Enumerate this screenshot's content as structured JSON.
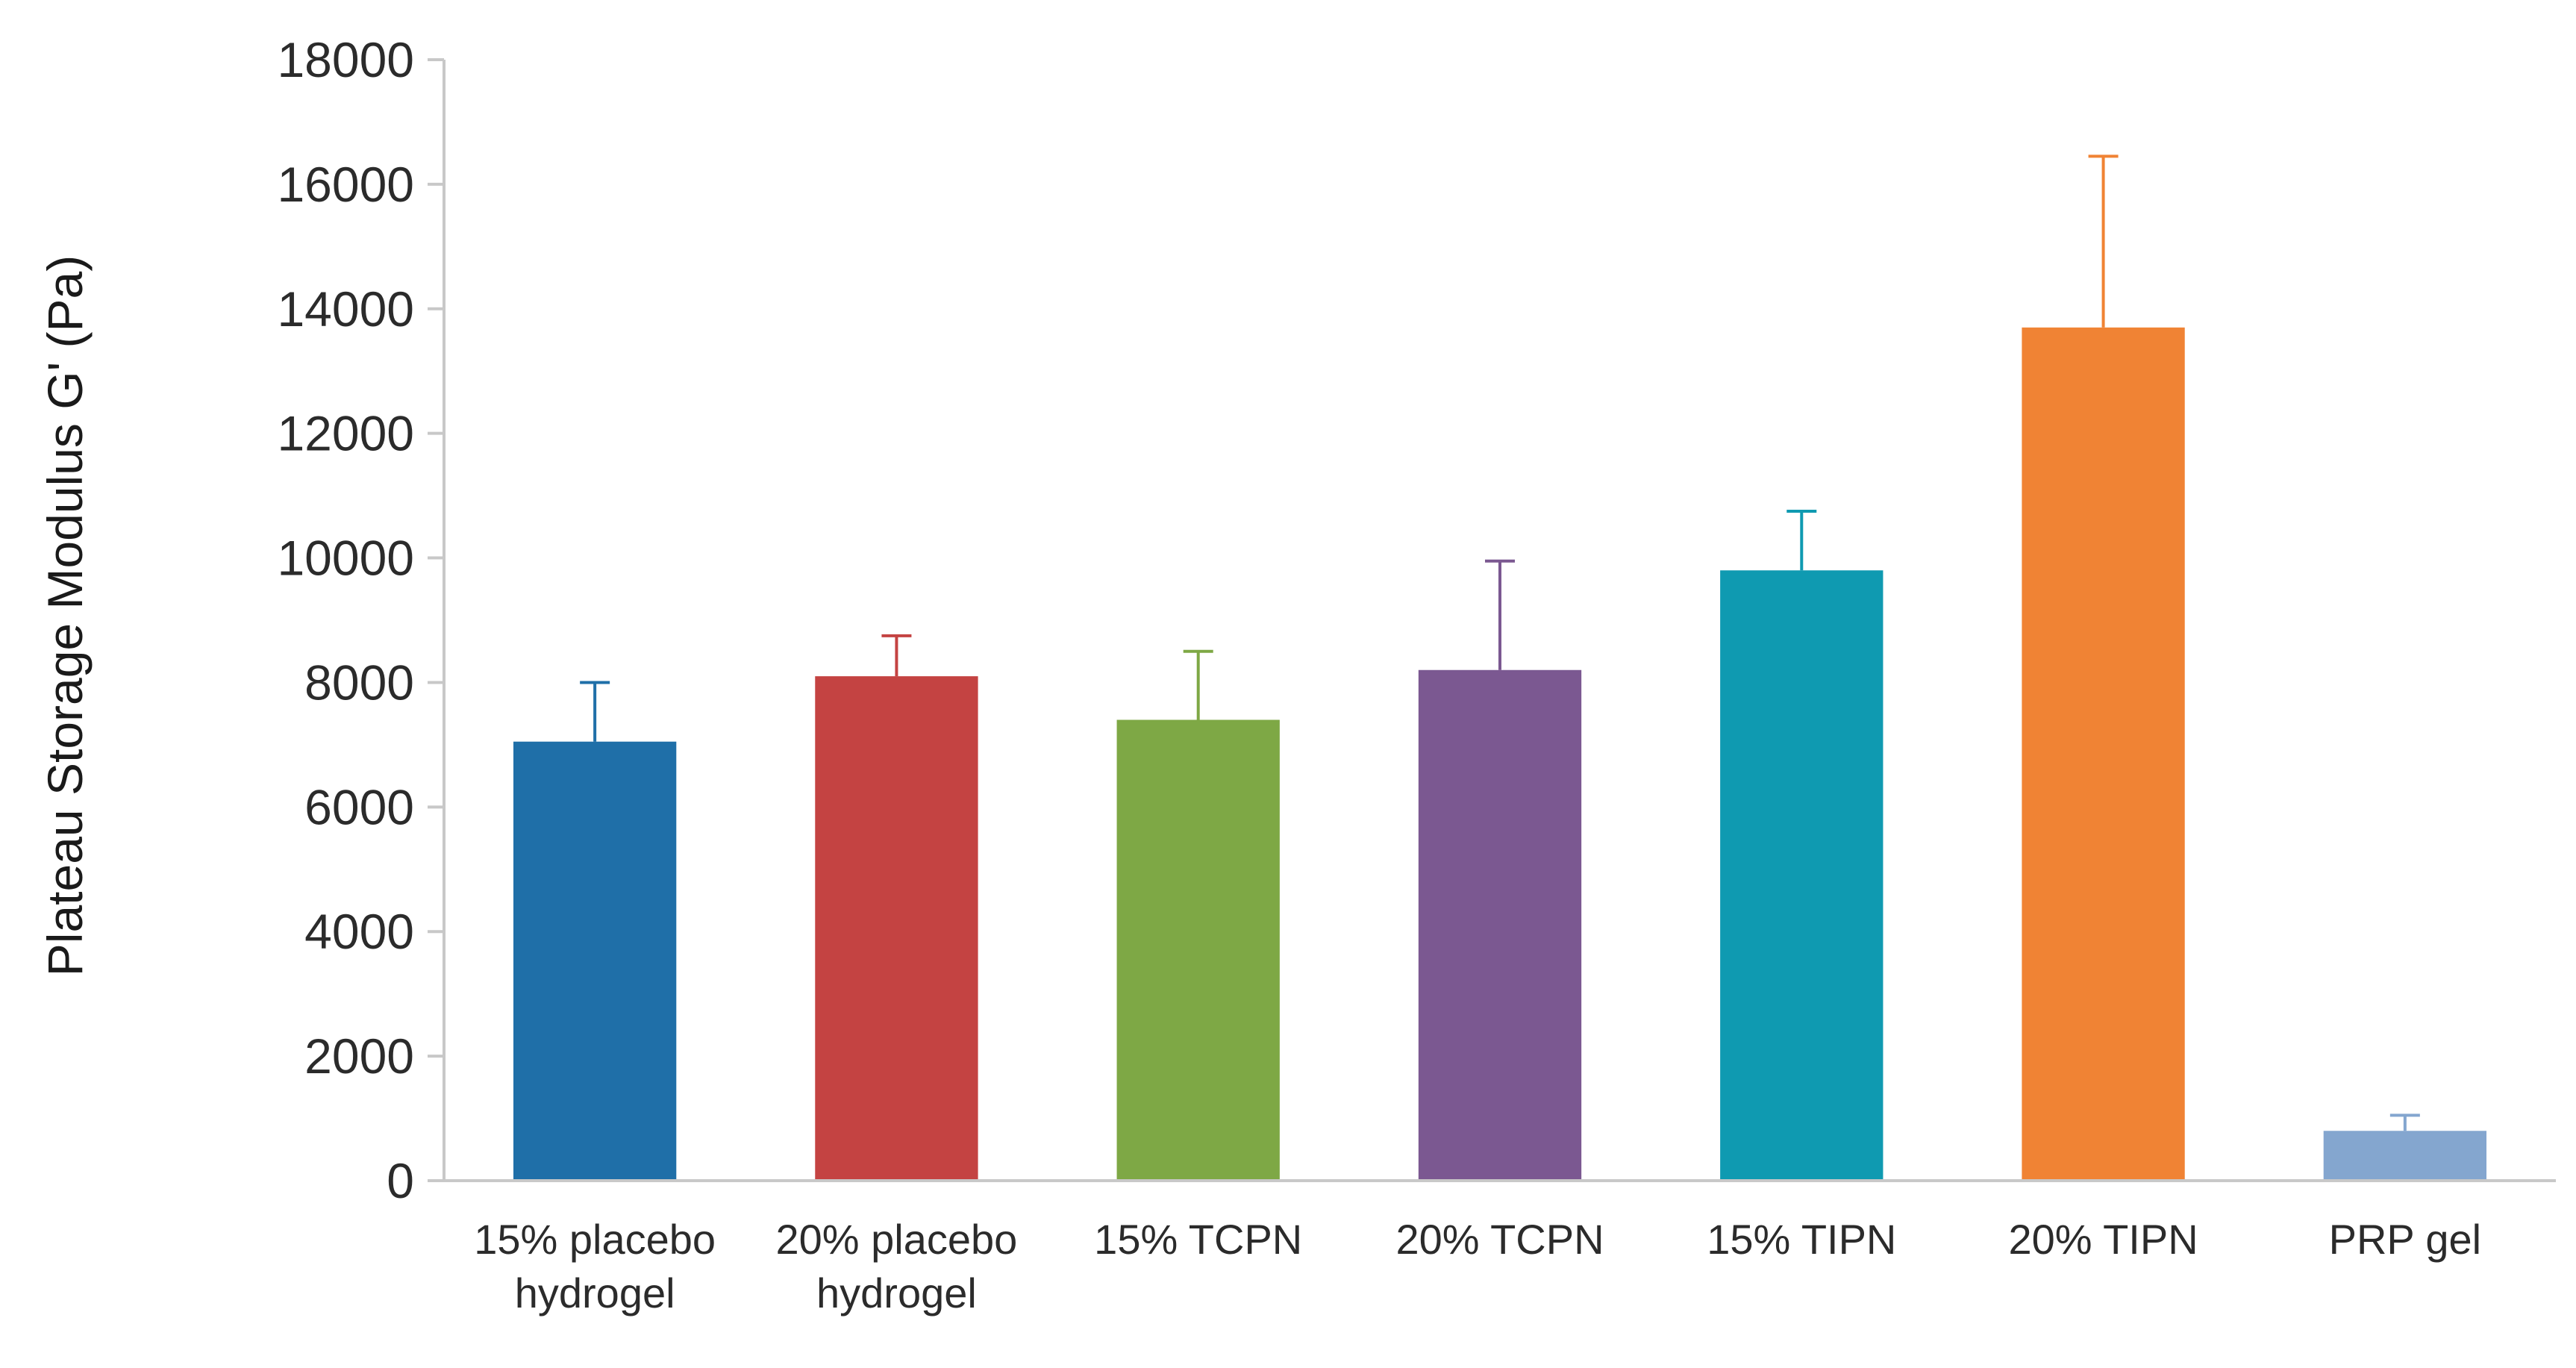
{
  "chart_data": {
    "type": "bar",
    "title": "",
    "xlabel": "",
    "ylabel": "Plateau Storage Modulus G' (Pa)",
    "ylim": [
      0,
      18000
    ],
    "yticks": [
      0,
      2000,
      4000,
      6000,
      8000,
      10000,
      12000,
      14000,
      16000,
      18000
    ],
    "grid": false,
    "legend": "none",
    "categories": [
      [
        "15% placebo",
        "hydrogel"
      ],
      [
        "20% placebo",
        "hydrogel"
      ],
      [
        "15% TCPN"
      ],
      [
        "20% TCPN"
      ],
      [
        "15% TIPN"
      ],
      [
        "20% TIPN"
      ],
      [
        "PRP gel"
      ]
    ],
    "values": [
      7050,
      8100,
      7400,
      8200,
      9800,
      13700,
      800
    ],
    "errors": [
      950,
      650,
      1100,
      1750,
      950,
      2750,
      250
    ],
    "colors": [
      "#1f6fa8",
      "#c44342",
      "#7ea845",
      "#7b5891",
      "#0f9ab1",
      "#f08334",
      "#84a6cf"
    ]
  }
}
